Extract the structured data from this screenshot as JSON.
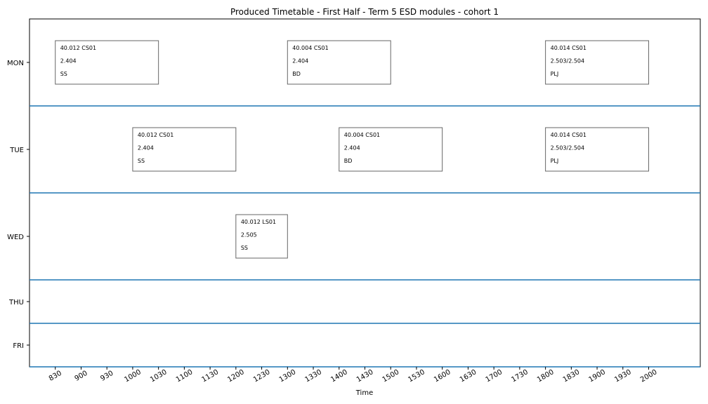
{
  "chart_data": {
    "type": "timetable",
    "title": "Produced Timetable - First Half - Term 5 ESD modules - cohort 1",
    "xlabel": "Time",
    "ylabel": "",
    "x_ticks": [
      "830",
      "900",
      "930",
      "1000",
      "1030",
      "1100",
      "1130",
      "1200",
      "1230",
      "1300",
      "1330",
      "1400",
      "1430",
      "1500",
      "1530",
      "1600",
      "1630",
      "1700",
      "1730",
      "1800",
      "1830",
      "1900",
      "1930",
      "2000"
    ],
    "x_tick_values": [
      8.5,
      9,
      9.5,
      10,
      10.5,
      11,
      11.5,
      12,
      12.5,
      13,
      13.5,
      14,
      14.5,
      15,
      15.5,
      16,
      16.5,
      17,
      17.5,
      18,
      18.5,
      19,
      19.5,
      20
    ],
    "xlim": [
      8,
      21
    ],
    "days": [
      "MON",
      "TUE",
      "WED",
      "THU",
      "FRI"
    ],
    "separator_color": "#1f77b4",
    "sessions": [
      {
        "day": "MON",
        "start": 8.5,
        "end": 10.5,
        "lines": [
          "40.012 CS01",
          "2.404",
          "SS"
        ]
      },
      {
        "day": "MON",
        "start": 13,
        "end": 15,
        "lines": [
          "40.004 CS01",
          "2.404",
          "BD"
        ]
      },
      {
        "day": "MON",
        "start": 18,
        "end": 20,
        "lines": [
          "40.014 CS01",
          "2.503/2.504",
          "PLJ"
        ]
      },
      {
        "day": "TUE",
        "start": 10,
        "end": 12,
        "lines": [
          "40.012 CS01",
          "2.404",
          "SS"
        ]
      },
      {
        "day": "TUE",
        "start": 14,
        "end": 16,
        "lines": [
          "40.004 CS01",
          "2.404",
          "BD"
        ]
      },
      {
        "day": "TUE",
        "start": 18,
        "end": 20,
        "lines": [
          "40.014 CS01",
          "2.503/2.504",
          "PLJ"
        ]
      },
      {
        "day": "WED",
        "start": 12,
        "end": 13,
        "lines": [
          "40.012 LS01",
          "2.505",
          "SS"
        ]
      }
    ]
  }
}
